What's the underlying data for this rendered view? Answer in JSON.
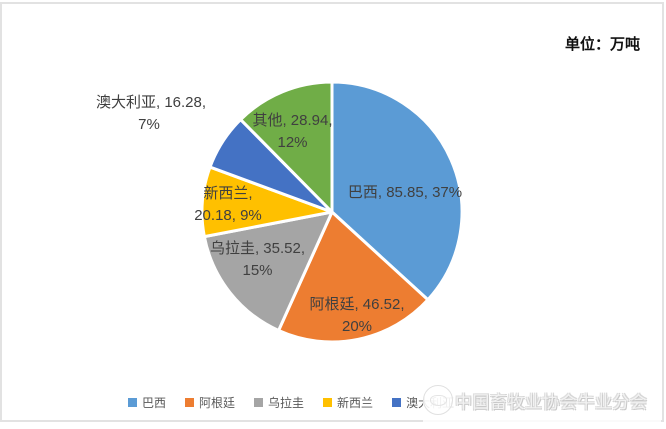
{
  "header": {
    "unit_label": "单位：万吨"
  },
  "chart_data": {
    "type": "pie",
    "title": "",
    "unit": "万吨",
    "start_angle_deg": 0,
    "direction": "clockwise",
    "legend_position": "bottom",
    "slices": [
      {
        "name": "巴西",
        "value": 85.85,
        "pct": "37%",
        "color": "#5B9BD5",
        "label_lines": [
          "巴西, 85.85, 37%"
        ]
      },
      {
        "name": "阿根廷",
        "value": 46.52,
        "pct": "20%",
        "color": "#ED7D31",
        "label_lines": [
          "阿根廷, 46.52,",
          "20%"
        ]
      },
      {
        "name": "乌拉圭",
        "value": 35.52,
        "pct": "15%",
        "color": "#A5A5A5",
        "label_lines": [
          "乌拉圭, 35.52,",
          "15%"
        ]
      },
      {
        "name": "新西兰",
        "value": 20.18,
        "pct": "9%",
        "color": "#FFC000",
        "label_lines": [
          "新西兰,",
          "20.18, 9%"
        ]
      },
      {
        "name": "澳大利亚",
        "value": 16.28,
        "pct": "7%",
        "color": "#4472C4",
        "label_lines": [
          "澳大利亚, 16.28,",
          "7%"
        ]
      },
      {
        "name": "其他",
        "value": 28.94,
        "pct": "12%",
        "color": "#70AD47",
        "label_lines": [
          "其他, 28.94,",
          "12%"
        ]
      }
    ],
    "legend": [
      {
        "label": "巴西",
        "color": "#5B9BD5"
      },
      {
        "label": "阿根廷",
        "color": "#ED7D31"
      },
      {
        "label": "乌拉圭",
        "color": "#A5A5A5"
      },
      {
        "label": "新西兰",
        "color": "#FFC000"
      },
      {
        "label": "澳大利亚",
        "color": "#4472C4"
      }
    ]
  },
  "watermark": {
    "text": "中国畜牧业协会牛业分会",
    "logo": "cattle-logo"
  }
}
